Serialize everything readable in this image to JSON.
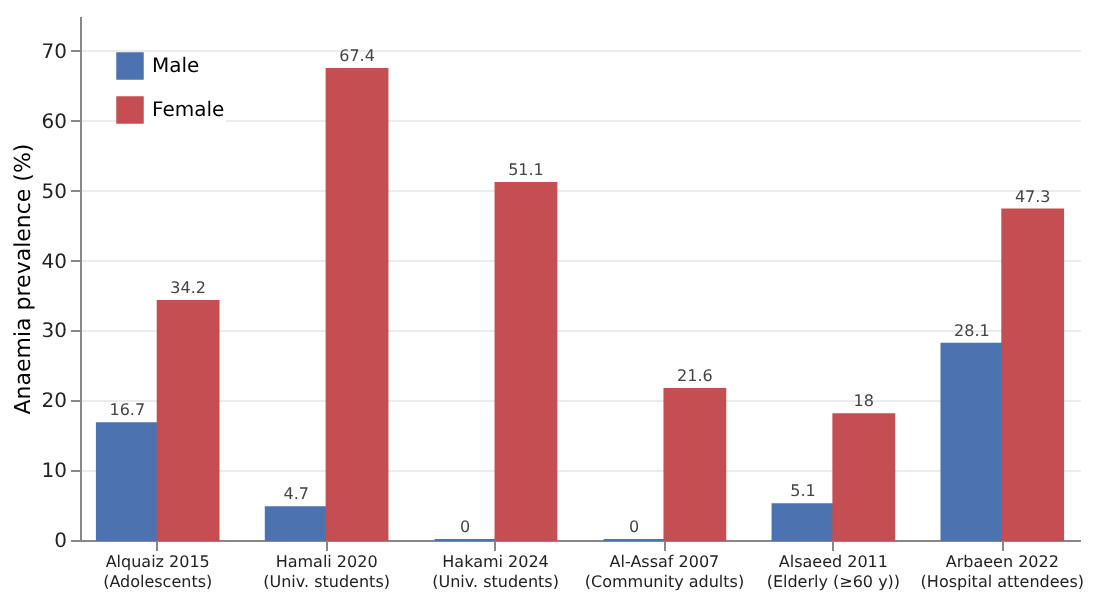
{
  "chart_data": {
    "type": "bar",
    "ylabel": "Anaemia prevalence (%)",
    "categories": [
      "Alquaiz 2015\n(Adolescents)",
      "Hamali 2020\n(Univ. students)",
      "Hakami 2024\n(Univ. students)",
      "Al-Assaf 2007\n(Community adults)",
      "Alsaeed 2011\n(Elderly (≥60 y))",
      "Arbaeen 2022\n(Hospital attendees)"
    ],
    "series": [
      {
        "name": "Male",
        "color": "#4c72b0",
        "values": [
          16.7,
          4.7,
          0,
          0,
          5.1,
          28.1
        ]
      },
      {
        "name": "Female",
        "color": "#c44e52",
        "values": [
          34.2,
          67.4,
          51.1,
          21.6,
          18,
          47.3
        ]
      }
    ],
    "ylim": [
      0,
      75
    ],
    "yticks": [
      0,
      10,
      20,
      30,
      40,
      50,
      60,
      70
    ],
    "grid": "y",
    "legend": "top left",
    "data_labels": true
  }
}
